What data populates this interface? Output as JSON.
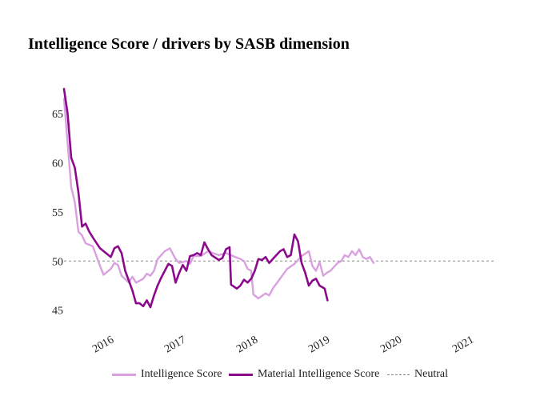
{
  "chart_data": {
    "type": "line",
    "title": "Intelligence Score / drivers by SASB dimension",
    "xlabel": "",
    "ylabel": "",
    "xlim": [
      2015.3,
      2021.3
    ],
    "ylim": [
      44,
      68
    ],
    "y_ticks": [
      45,
      50,
      55,
      60,
      65
    ],
    "x_ticks": [
      2016,
      2017,
      2018,
      2019,
      2020,
      2021
    ],
    "x_tick_labels": [
      "2016",
      "2017",
      "2018",
      "2019",
      "2020",
      "2021"
    ],
    "grid": false,
    "legend_position": "bottom",
    "series": [
      {
        "name": "Intelligence Score",
        "color": "#d9a0df",
        "style": "solid",
        "points": [
          [
            2015.3,
            66.5
          ],
          [
            2015.35,
            62
          ],
          [
            2015.4,
            57.5
          ],
          [
            2015.45,
            56
          ],
          [
            2015.5,
            53
          ],
          [
            2015.55,
            52.6
          ],
          [
            2015.6,
            51.8
          ],
          [
            2015.7,
            51.5
          ],
          [
            2015.8,
            49.5
          ],
          [
            2015.85,
            48.6
          ],
          [
            2015.95,
            49.2
          ],
          [
            2016.0,
            49.8
          ],
          [
            2016.05,
            49.6
          ],
          [
            2016.1,
            48.5
          ],
          [
            2016.2,
            47.8
          ],
          [
            2016.25,
            48.4
          ],
          [
            2016.3,
            47.8
          ],
          [
            2016.4,
            48.2
          ],
          [
            2016.45,
            48.7
          ],
          [
            2016.5,
            48.5
          ],
          [
            2016.55,
            49
          ],
          [
            2016.6,
            50.2
          ],
          [
            2016.7,
            51
          ],
          [
            2016.77,
            51.3
          ],
          [
            2016.85,
            50.2
          ],
          [
            2016.9,
            49.8
          ],
          [
            2017.0,
            50
          ],
          [
            2017.05,
            49.7
          ],
          [
            2017.1,
            50.5
          ],
          [
            2017.2,
            50.5
          ],
          [
            2017.3,
            51
          ],
          [
            2017.37,
            50.8
          ],
          [
            2017.45,
            50.6
          ],
          [
            2017.55,
            50.8
          ],
          [
            2017.65,
            50.5
          ],
          [
            2017.75,
            50.2
          ],
          [
            2017.8,
            50
          ],
          [
            2017.85,
            49.2
          ],
          [
            2017.9,
            49
          ],
          [
            2017.93,
            46.6
          ],
          [
            2018.0,
            46.2
          ],
          [
            2018.1,
            46.7
          ],
          [
            2018.15,
            46.5
          ],
          [
            2018.2,
            47.2
          ],
          [
            2018.3,
            48.2
          ],
          [
            2018.4,
            49.2
          ],
          [
            2018.5,
            49.7
          ],
          [
            2018.6,
            50.5
          ],
          [
            2018.7,
            51
          ],
          [
            2018.75,
            49.5
          ],
          [
            2018.8,
            49
          ],
          [
            2018.85,
            49.9
          ],
          [
            2018.9,
            48.5
          ],
          [
            2018.95,
            48.8
          ],
          [
            2019.0,
            49
          ],
          [
            2019.1,
            49.8
          ],
          [
            2019.15,
            50
          ],
          [
            2019.2,
            50.6
          ],
          [
            2019.25,
            50.4
          ],
          [
            2019.3,
            51
          ],
          [
            2019.35,
            50.6
          ],
          [
            2019.4,
            51.2
          ],
          [
            2019.45,
            50.4
          ],
          [
            2019.5,
            50.2
          ],
          [
            2019.55,
            50.4
          ],
          [
            2019.6,
            49.8
          ]
        ]
      },
      {
        "name": "Material Intelligence Score",
        "color": "#8b0a8c",
        "style": "solid",
        "points": [
          [
            2015.3,
            67.5
          ],
          [
            2015.35,
            65
          ],
          [
            2015.4,
            60.5
          ],
          [
            2015.45,
            59.5
          ],
          [
            2015.5,
            57
          ],
          [
            2015.55,
            53.5
          ],
          [
            2015.6,
            53.8
          ],
          [
            2015.65,
            53
          ],
          [
            2015.7,
            52.4
          ],
          [
            2015.8,
            51.3
          ],
          [
            2015.9,
            50.7
          ],
          [
            2015.95,
            50.4
          ],
          [
            2016.0,
            51.3
          ],
          [
            2016.05,
            51.5
          ],
          [
            2016.1,
            50.8
          ],
          [
            2016.15,
            49
          ],
          [
            2016.2,
            48
          ],
          [
            2016.25,
            47
          ],
          [
            2016.3,
            45.7
          ],
          [
            2016.35,
            45.7
          ],
          [
            2016.4,
            45.4
          ],
          [
            2016.45,
            46
          ],
          [
            2016.5,
            45.3
          ],
          [
            2016.55,
            46.5
          ],
          [
            2016.6,
            47.5
          ],
          [
            2016.65,
            48.3
          ],
          [
            2016.7,
            49
          ],
          [
            2016.75,
            49.7
          ],
          [
            2016.8,
            49.5
          ],
          [
            2016.85,
            47.8
          ],
          [
            2016.9,
            48.8
          ],
          [
            2016.95,
            49.6
          ],
          [
            2017.0,
            49
          ],
          [
            2017.05,
            50.5
          ],
          [
            2017.1,
            50.6
          ],
          [
            2017.15,
            50.8
          ],
          [
            2017.2,
            50.6
          ],
          [
            2017.25,
            51.9
          ],
          [
            2017.3,
            51.2
          ],
          [
            2017.35,
            50.6
          ],
          [
            2017.45,
            50.1
          ],
          [
            2017.5,
            50.3
          ],
          [
            2017.55,
            51.2
          ],
          [
            2017.6,
            51.4
          ],
          [
            2017.62,
            47.6
          ],
          [
            2017.7,
            47.2
          ],
          [
            2017.75,
            47.5
          ],
          [
            2017.8,
            48.1
          ],
          [
            2017.85,
            47.8
          ],
          [
            2017.9,
            48.2
          ],
          [
            2017.95,
            49
          ],
          [
            2018.0,
            50.2
          ],
          [
            2018.05,
            50.1
          ],
          [
            2018.1,
            50.4
          ],
          [
            2018.15,
            49.8
          ],
          [
            2018.2,
            50.2
          ],
          [
            2018.25,
            50.6
          ],
          [
            2018.3,
            51
          ],
          [
            2018.35,
            51.2
          ],
          [
            2018.4,
            50.4
          ],
          [
            2018.45,
            50.6
          ],
          [
            2018.5,
            52.7
          ],
          [
            2018.55,
            52
          ],
          [
            2018.6,
            49.8
          ],
          [
            2018.65,
            48.8
          ],
          [
            2018.7,
            47.5
          ],
          [
            2018.75,
            48
          ],
          [
            2018.8,
            48.2
          ],
          [
            2018.85,
            47.5
          ],
          [
            2018.92,
            47.2
          ],
          [
            2018.96,
            46
          ]
        ]
      },
      {
        "name": "Neutral",
        "color": "#888888",
        "style": "dashed",
        "points": [
          [
            2015.3,
            50
          ],
          [
            2021.3,
            50
          ]
        ]
      }
    ]
  }
}
